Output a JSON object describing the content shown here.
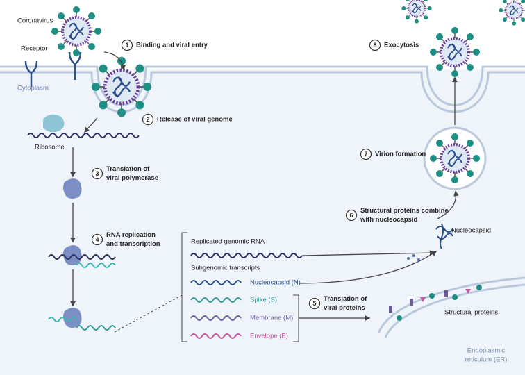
{
  "labels": {
    "coronavirus": "Coronavirus",
    "receptor": "Receptor",
    "cytoplasm": "Cytoplasm",
    "ribosome": "Ribosome",
    "nucleocapsid": "Nucleocapsid",
    "structural_proteins": "Structural proteins",
    "er": [
      "Endoplasmic",
      "reticulum (ER)"
    ]
  },
  "steps": [
    {
      "number": "1",
      "lines": [
        "Binding and viral entry"
      ]
    },
    {
      "number": "2",
      "lines": [
        "Release of viral genome"
      ]
    },
    {
      "number": "3",
      "lines": [
        "Translation of",
        "viral polymerase"
      ]
    },
    {
      "number": "4",
      "lines": [
        "RNA replication",
        "and transcription"
      ]
    },
    {
      "number": "5",
      "lines": [
        "Translation of",
        "viral proteins"
      ]
    },
    {
      "number": "6",
      "lines": [
        "Structural proteins combine",
        "with nucleocapsid"
      ]
    },
    {
      "number": "7",
      "lines": [
        "Virion formation"
      ]
    },
    {
      "number": "8",
      "lines": [
        "Exocytosis"
      ]
    }
  ],
  "transcripts": {
    "genomic": "Replicated genomic RNA",
    "subgenomic": "Subgenomic transcripts",
    "items": [
      {
        "label": "Nucleocapsid (N)",
        "color": "#27508a"
      },
      {
        "label": "Spike (S)",
        "color": "#2a9d8f"
      },
      {
        "label": "Membrane (M)",
        "color": "#6b5b95"
      },
      {
        "label": "Envelope (E)",
        "color": "#c0569c"
      }
    ]
  }
}
